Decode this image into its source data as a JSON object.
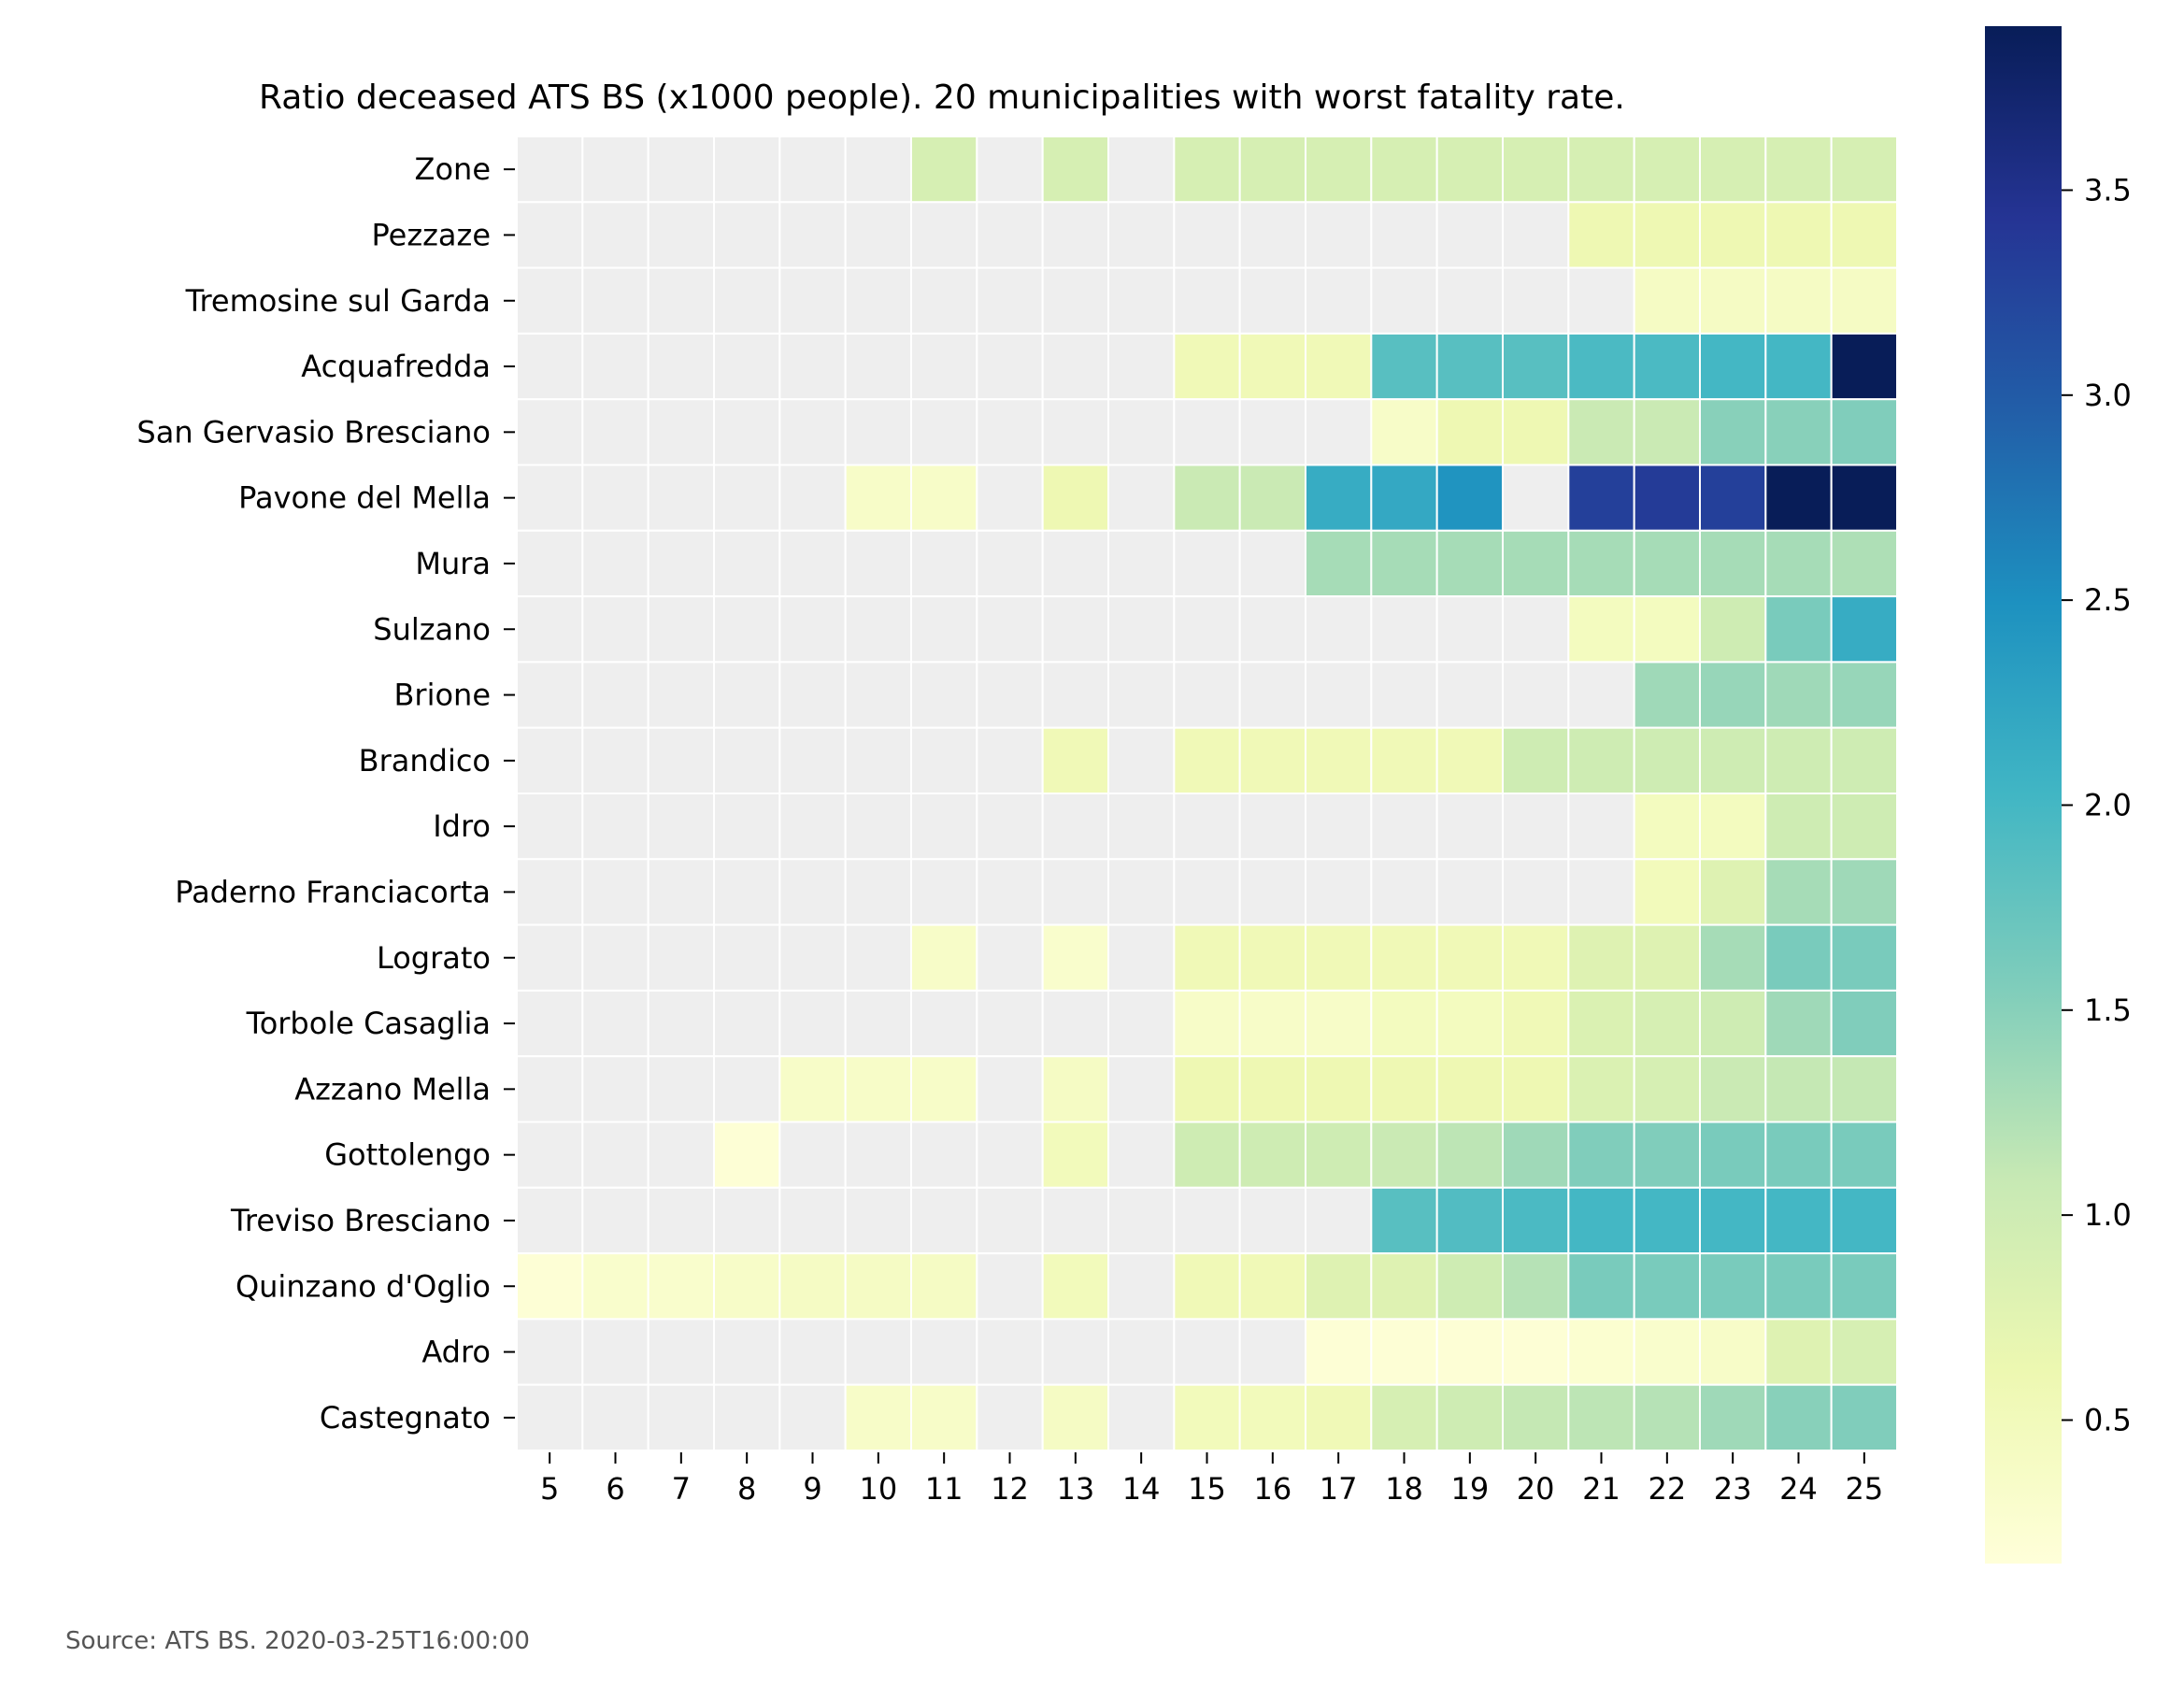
{
  "chart_data": {
    "type": "heatmap",
    "title": "Ratio deceased ATS BS (x1000 people). 20 municipalities with worst fatality rate.",
    "source": "Source: ATS BS. 2020-03-25T16:00:00",
    "x": [
      5,
      6,
      7,
      8,
      9,
      10,
      11,
      12,
      13,
      14,
      15,
      16,
      17,
      18,
      19,
      20,
      21,
      22,
      23,
      24,
      25
    ],
    "rows": [
      "Zone",
      "Pezzaze",
      "Tremosine sul Garda",
      "Acquafredda",
      "San Gervasio Bresciano",
      "Pavone del Mella",
      "Mura",
      "Sulzano",
      "Brione",
      "Brandico",
      "Idro",
      "Paderno Franciacorta",
      "Lograto",
      "Torbole Casaglia",
      "Azzano Mella",
      "Gottolengo",
      "Treviso Bresciano",
      "Quinzano d'Oglio",
      "Adro",
      "Castegnato"
    ],
    "values": [
      [
        null,
        null,
        null,
        null,
        null,
        null,
        0.9,
        null,
        0.9,
        null,
        0.9,
        0.9,
        0.9,
        0.9,
        0.9,
        0.9,
        0.9,
        0.9,
        0.9,
        0.9,
        0.9
      ],
      [
        null,
        null,
        null,
        null,
        null,
        null,
        null,
        null,
        null,
        null,
        null,
        null,
        null,
        null,
        null,
        null,
        0.6,
        0.6,
        0.6,
        0.6,
        0.6
      ],
      [
        null,
        null,
        null,
        null,
        null,
        null,
        null,
        null,
        null,
        null,
        null,
        null,
        null,
        null,
        null,
        null,
        null,
        0.4,
        0.4,
        0.4,
        0.4
      ],
      [
        null,
        null,
        null,
        null,
        null,
        null,
        null,
        null,
        null,
        null,
        0.55,
        0.55,
        0.55,
        1.85,
        1.85,
        1.85,
        1.95,
        1.95,
        2.0,
        2.0,
        3.9
      ],
      [
        null,
        null,
        null,
        null,
        null,
        null,
        null,
        null,
        null,
        null,
        null,
        null,
        null,
        0.35,
        0.6,
        0.6,
        1.05,
        1.05,
        1.5,
        1.5,
        1.55
      ],
      [
        null,
        null,
        null,
        null,
        null,
        0.35,
        0.35,
        null,
        0.6,
        null,
        1.05,
        1.05,
        2.15,
        2.2,
        2.45,
        null,
        3.3,
        3.35,
        3.3,
        3.9,
        3.9
      ],
      [
        null,
        null,
        null,
        null,
        null,
        null,
        null,
        null,
        null,
        null,
        null,
        null,
        1.3,
        1.3,
        1.3,
        1.3,
        1.3,
        1.3,
        1.3,
        1.3,
        1.25
      ],
      [
        null,
        null,
        null,
        null,
        null,
        null,
        null,
        null,
        null,
        null,
        null,
        null,
        null,
        null,
        null,
        null,
        0.45,
        0.45,
        1.0,
        1.6,
        2.15
      ],
      [
        null,
        null,
        null,
        null,
        null,
        null,
        null,
        null,
        null,
        null,
        null,
        null,
        null,
        null,
        null,
        null,
        null,
        1.35,
        1.4,
        1.35,
        1.4
      ],
      [
        null,
        null,
        null,
        null,
        null,
        null,
        null,
        null,
        0.55,
        null,
        0.55,
        0.55,
        0.55,
        0.55,
        0.55,
        1.0,
        1.0,
        1.0,
        1.0,
        1.0,
        1.0
      ],
      [
        null,
        null,
        null,
        null,
        null,
        null,
        null,
        null,
        null,
        null,
        null,
        null,
        null,
        null,
        null,
        null,
        null,
        0.45,
        0.45,
        1.0,
        1.0
      ],
      [
        null,
        null,
        null,
        null,
        null,
        null,
        null,
        null,
        null,
        null,
        null,
        null,
        null,
        null,
        null,
        null,
        null,
        0.5,
        0.8,
        1.3,
        1.35
      ],
      [
        null,
        null,
        null,
        null,
        null,
        null,
        0.35,
        null,
        0.3,
        null,
        0.55,
        0.55,
        0.55,
        0.55,
        0.55,
        0.55,
        0.8,
        0.8,
        1.3,
        1.6,
        1.6
      ],
      [
        null,
        null,
        null,
        null,
        null,
        null,
        null,
        null,
        null,
        null,
        0.35,
        0.35,
        0.35,
        0.45,
        0.45,
        0.55,
        0.85,
        0.9,
        1.0,
        1.35,
        1.55
      ],
      [
        null,
        null,
        null,
        null,
        0.35,
        0.35,
        0.35,
        null,
        0.4,
        null,
        0.6,
        0.6,
        0.6,
        0.6,
        0.6,
        0.6,
        0.85,
        0.9,
        1.05,
        1.1,
        1.1
      ],
      [
        null,
        null,
        null,
        0.2,
        null,
        null,
        null,
        null,
        0.5,
        null,
        1.0,
        1.0,
        1.0,
        1.05,
        1.15,
        1.35,
        1.55,
        1.55,
        1.6,
        1.6,
        1.6
      ],
      [
        null,
        null,
        null,
        null,
        null,
        null,
        null,
        null,
        null,
        null,
        null,
        null,
        null,
        1.85,
        1.9,
        1.95,
        2.0,
        2.0,
        2.0,
        2.0,
        2.0
      ],
      [
        0.2,
        0.3,
        0.3,
        0.35,
        0.4,
        0.4,
        0.4,
        null,
        0.5,
        null,
        0.55,
        0.55,
        0.8,
        0.8,
        1.0,
        1.2,
        1.6,
        1.6,
        1.6,
        1.6,
        1.6
      ],
      [
        null,
        null,
        null,
        null,
        null,
        null,
        null,
        null,
        null,
        null,
        null,
        null,
        0.2,
        0.2,
        0.2,
        0.2,
        0.25,
        0.3,
        0.35,
        0.8,
        0.9
      ],
      [
        null,
        null,
        null,
        null,
        null,
        0.35,
        0.35,
        null,
        0.4,
        null,
        0.5,
        0.5,
        0.55,
        0.9,
        1.0,
        1.1,
        1.15,
        1.2,
        1.35,
        1.5,
        1.55
      ]
    ],
    "colorbar": {
      "min": 0.15,
      "max": 3.9,
      "ticks": [
        "0.5",
        "1.0",
        "1.5",
        "2.0",
        "2.5",
        "3.0",
        "3.5"
      ],
      "colormap": "YlGnBu",
      "missing_color": "#eeeeee"
    },
    "grid_line_color": "#ffffff"
  }
}
